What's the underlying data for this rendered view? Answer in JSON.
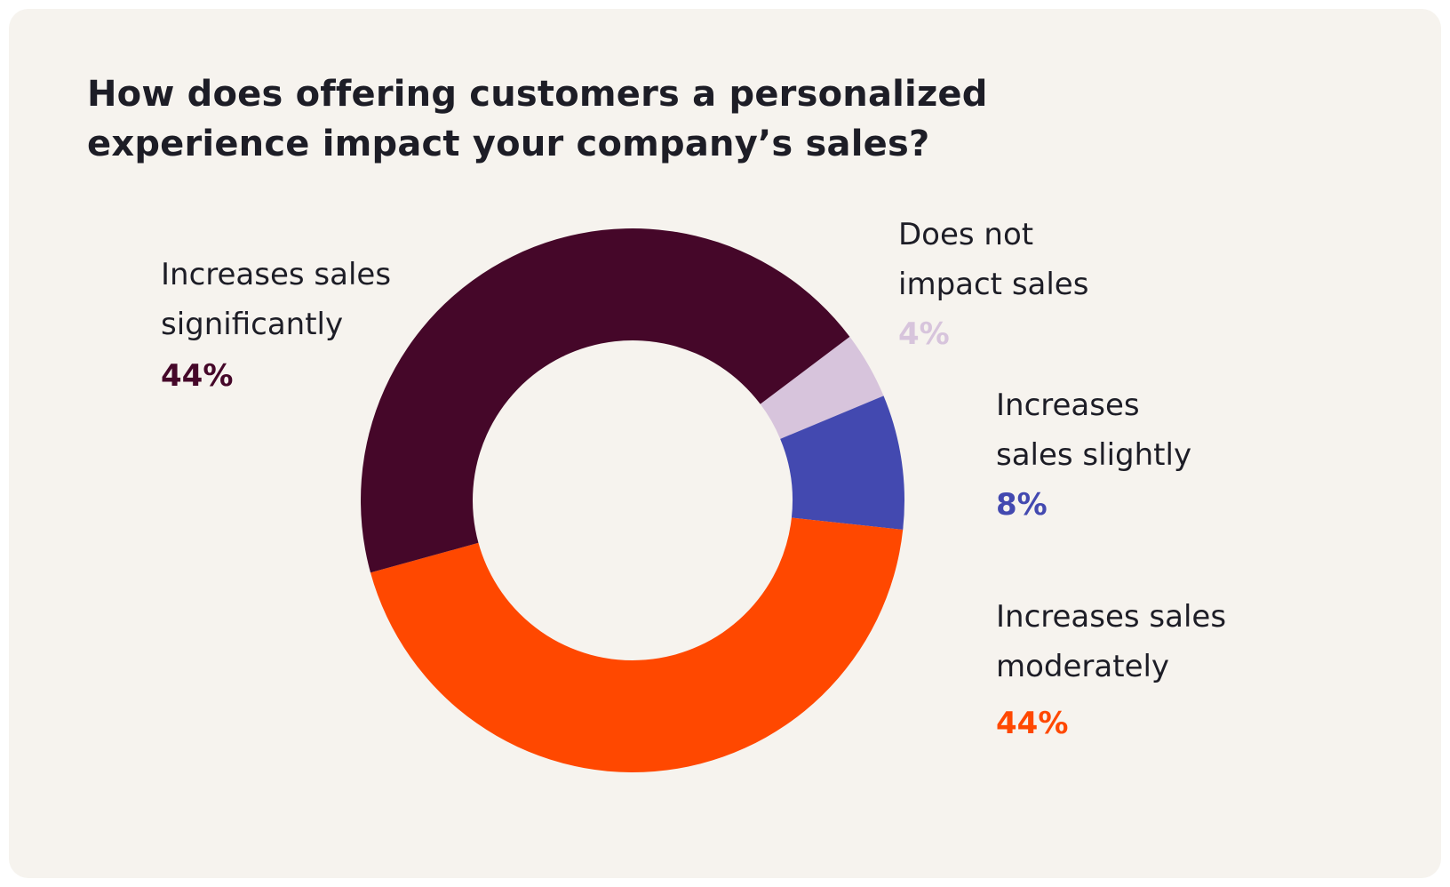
{
  "chart_data": {
    "type": "pie",
    "title": "How does offering customers a personalized experience impact your company’s sales?",
    "slices": [
      {
        "label_lines": [
          "Does not",
          "impact sales"
        ],
        "value": 4,
        "value_label": "4%",
        "color": "#d7c4dc"
      },
      {
        "label_lines": [
          "Increases",
          "sales slightly"
        ],
        "value": 8,
        "value_label": "8%",
        "color": "#4349b0"
      },
      {
        "label_lines": [
          "Increases sales",
          "moderately"
        ],
        "value": 44,
        "value_label": "44%",
        "color": "#ff4800"
      },
      {
        "label_lines": [
          "Increases sales",
          "significantly"
        ],
        "value": 44,
        "value_label": "44%",
        "color": "#450729"
      }
    ],
    "legend": "none",
    "donut": true
  }
}
